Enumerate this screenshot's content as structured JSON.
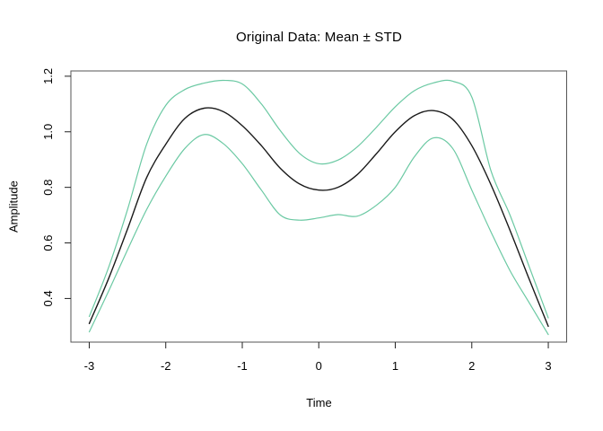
{
  "chart_data": {
    "type": "line",
    "title": "Original Data: Mean ± STD",
    "xlabel": "Time",
    "ylabel": "Amplitude",
    "grid": false,
    "legend": null,
    "x_axis": {
      "ticks": [
        -3,
        -2,
        -1,
        0,
        1,
        2,
        3
      ],
      "tick_labels": [
        "-3",
        "-2",
        "-1",
        "0",
        "1",
        "2",
        "3"
      ],
      "range": [
        -3.24,
        3.24
      ]
    },
    "y_axis": {
      "ticks": [
        0.4,
        0.6,
        0.8,
        1.0,
        1.2
      ],
      "tick_labels": [
        "0.4",
        "0.6",
        "0.8",
        "1.0",
        "1.2"
      ],
      "range": [
        0.243,
        1.219
      ]
    },
    "x": [
      -3,
      -2.75,
      -2.5,
      -2.25,
      -2,
      -1.75,
      -1.5,
      -1.25,
      -1,
      -0.75,
      -0.5,
      -0.25,
      0,
      0.25,
      0.5,
      0.75,
      1,
      1.25,
      1.5,
      1.75,
      2,
      2.25,
      2.5,
      2.75,
      3
    ],
    "series": [
      {
        "name": "mean",
        "color": "#1a1a1a",
        "stroke_width": 1.4,
        "values": [
          0.31,
          0.47,
          0.65,
          0.835,
          0.955,
          1.048,
          1.085,
          1.073,
          1.022,
          0.95,
          0.868,
          0.812,
          0.79,
          0.8,
          0.845,
          0.92,
          1.0,
          1.058,
          1.076,
          1.045,
          0.95,
          0.81,
          0.645,
          0.47,
          0.3
        ]
      },
      {
        "name": "mean-plus-std",
        "color": "#6bc9a3",
        "stroke_width": 1.2,
        "values": [
          0.335,
          0.51,
          0.72,
          0.955,
          1.095,
          1.152,
          1.175,
          1.185,
          1.172,
          1.1,
          1.003,
          0.922,
          0.885,
          0.898,
          0.945,
          1.015,
          1.09,
          1.148,
          1.176,
          1.182,
          1.125,
          0.86,
          0.7,
          0.515,
          0.33
        ]
      },
      {
        "name": "mean-minus-std",
        "color": "#6bc9a3",
        "stroke_width": 1.2,
        "values": [
          0.28,
          0.425,
          0.575,
          0.72,
          0.84,
          0.94,
          0.99,
          0.958,
          0.885,
          0.79,
          0.7,
          0.682,
          0.69,
          0.702,
          0.696,
          0.735,
          0.8,
          0.91,
          0.978,
          0.94,
          0.79,
          0.64,
          0.5,
          0.385,
          0.27
        ]
      }
    ],
    "colors": {
      "box": "#555555",
      "tick": "#222222",
      "text": "#000000",
      "background": "#ffffff"
    }
  }
}
